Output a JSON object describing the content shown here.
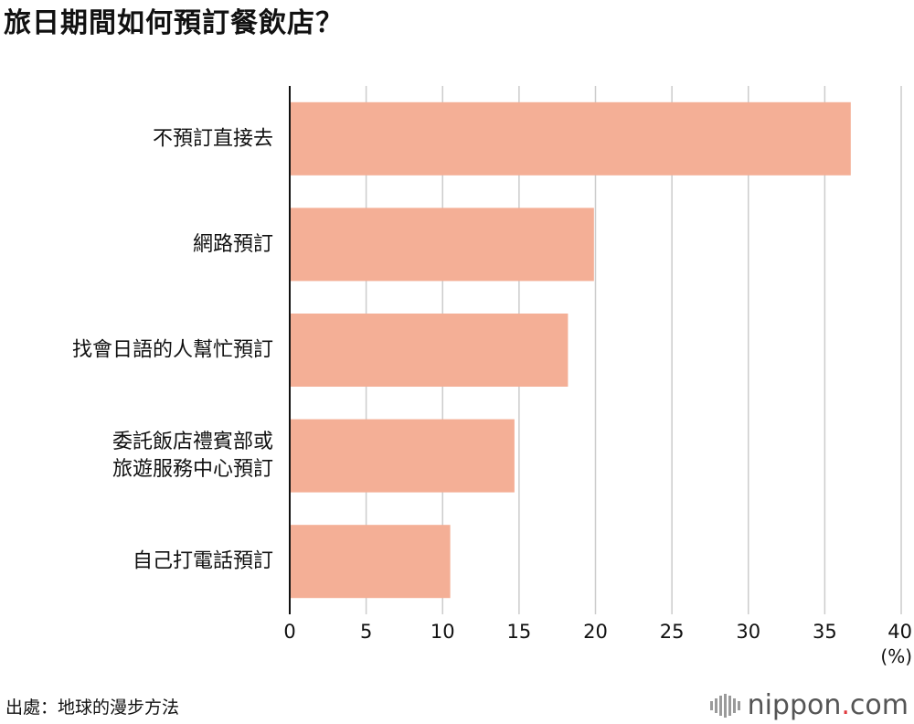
{
  "title": "旅日期間如何預訂餐飲店？",
  "chart_data": {
    "type": "bar",
    "orientation": "horizontal",
    "categories": [
      [
        "不預訂直接去"
      ],
      [
        "網路預訂"
      ],
      [
        "找會日語的人幫忙預訂"
      ],
      [
        "委託飯店禮賓部或",
        "旅遊服務中心預訂"
      ],
      [
        "自己打電話預訂"
      ]
    ],
    "values": [
      36.7,
      19.9,
      18.2,
      14.7,
      10.5
    ],
    "xlim": [
      0,
      40
    ],
    "xticks": [
      "0",
      "5",
      "10",
      "15",
      "20",
      "25",
      "30",
      "35",
      "40"
    ],
    "unit_label": "(%)",
    "bar_color": "#f4af96",
    "grid": true
  },
  "source": "出處：地球的漫步方法",
  "brand": {
    "name": "nippon",
    "dot": ".",
    "suffix": "com",
    "accent": "#e0393e"
  }
}
